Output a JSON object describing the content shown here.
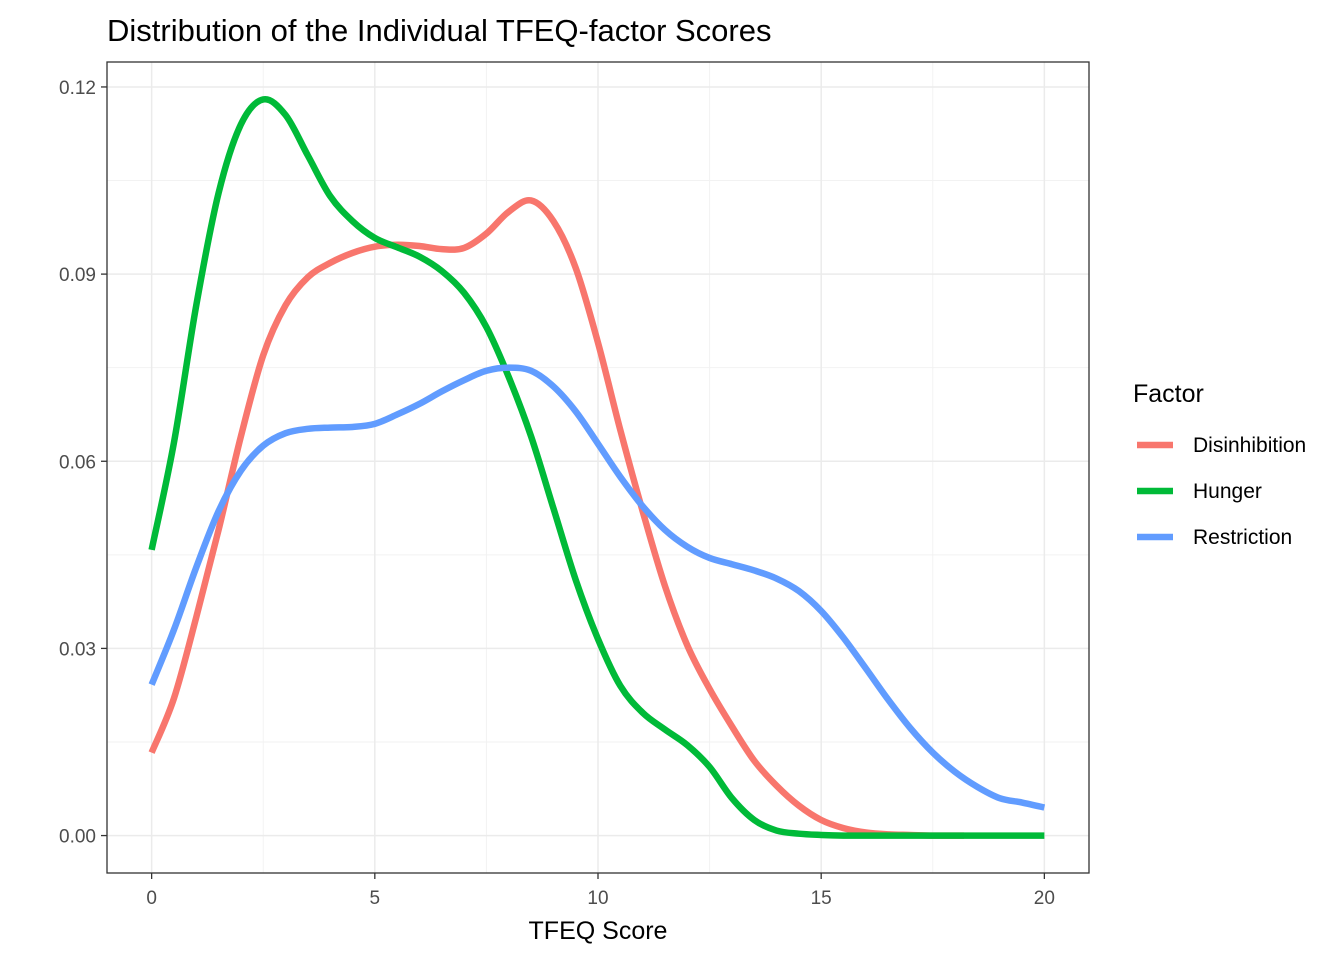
{
  "chart_data": {
    "type": "line",
    "title": "Distribution of the Individual TFEQ-factor Scores",
    "xlabel": "TFEQ Score",
    "ylabel": "",
    "xlim": [
      -1,
      21
    ],
    "ylim": [
      -0.006,
      0.124
    ],
    "x_ticks": [
      0,
      5,
      10,
      15,
      20
    ],
    "x_tick_labels": [
      "0",
      "5",
      "10",
      "15",
      "20"
    ],
    "y_ticks": [
      0.0,
      0.03,
      0.06,
      0.09,
      0.12
    ],
    "y_tick_labels": [
      "0.00",
      "0.03",
      "0.06",
      "0.09",
      "0.12"
    ],
    "grid": true,
    "legend_position": "right",
    "legend_title": "Factor",
    "series": [
      {
        "name": "Disinhibition",
        "color": "#f8766d",
        "x": [
          0,
          0.5,
          1,
          1.5,
          2,
          2.5,
          3,
          3.5,
          4,
          4.5,
          5,
          5.5,
          6,
          6.5,
          7,
          7.5,
          8,
          8.5,
          9,
          9.5,
          10,
          10.5,
          11,
          11.5,
          12,
          12.5,
          13,
          13.5,
          14,
          14.5,
          15,
          15.5,
          16,
          16.5,
          17,
          17.5,
          18,
          18.2
        ],
        "y": [
          0.0133,
          0.022,
          0.035,
          0.049,
          0.064,
          0.077,
          0.085,
          0.0895,
          0.0918,
          0.0934,
          0.0944,
          0.0947,
          0.0945,
          0.094,
          0.0942,
          0.0965,
          0.1,
          0.1018,
          0.0985,
          0.091,
          0.079,
          0.065,
          0.052,
          0.04,
          0.0305,
          0.0235,
          0.0175,
          0.012,
          0.008,
          0.0048,
          0.0025,
          0.0012,
          0.0005,
          0.0002,
          0.0001,
          0.0,
          0.0,
          0.0
        ]
      },
      {
        "name": "Hunger",
        "color": "#00ba38",
        "x": [
          0,
          0.5,
          1,
          1.5,
          2,
          2.5,
          3,
          3.5,
          4,
          4.5,
          5,
          5.5,
          6,
          6.5,
          7,
          7.5,
          8,
          8.5,
          9,
          9.5,
          10,
          10.5,
          11,
          11.5,
          12,
          12.5,
          13,
          13.5,
          14,
          14.5,
          15,
          15.5,
          16,
          17,
          18,
          19,
          20
        ],
        "y": [
          0.0458,
          0.063,
          0.085,
          0.103,
          0.114,
          0.118,
          0.1155,
          0.109,
          0.1025,
          0.0985,
          0.0958,
          0.0943,
          0.0928,
          0.0905,
          0.087,
          0.0815,
          0.0735,
          0.064,
          0.0525,
          0.041,
          0.0315,
          0.024,
          0.0197,
          0.017,
          0.0145,
          0.011,
          0.006,
          0.0025,
          0.0008,
          0.0003,
          0.0001,
          0.0,
          0.0,
          0.0,
          0.0,
          0.0,
          0.0
        ]
      },
      {
        "name": "Restriction",
        "color": "#619cff",
        "x": [
          0,
          0.5,
          1,
          1.5,
          2,
          2.5,
          3,
          3.5,
          4,
          4.5,
          5,
          5.5,
          6,
          6.5,
          7,
          7.5,
          8,
          8.5,
          9,
          9.5,
          10,
          10.5,
          11,
          11.5,
          12,
          12.5,
          13,
          13.5,
          14,
          14.5,
          15,
          15.5,
          16,
          16.5,
          17,
          17.5,
          18,
          18.5,
          19,
          19.5,
          20
        ],
        "y": [
          0.0242,
          0.033,
          0.043,
          0.052,
          0.0585,
          0.0625,
          0.0645,
          0.0652,
          0.0654,
          0.0655,
          0.066,
          0.0675,
          0.0692,
          0.0712,
          0.073,
          0.0745,
          0.075,
          0.0745,
          0.072,
          0.068,
          0.0628,
          0.0575,
          0.0528,
          0.049,
          0.0463,
          0.0445,
          0.0435,
          0.0425,
          0.0412,
          0.0392,
          0.036,
          0.0317,
          0.0268,
          0.0218,
          0.0172,
          0.0133,
          0.0102,
          0.0078,
          0.006,
          0.0053,
          0.0045
        ]
      }
    ]
  }
}
